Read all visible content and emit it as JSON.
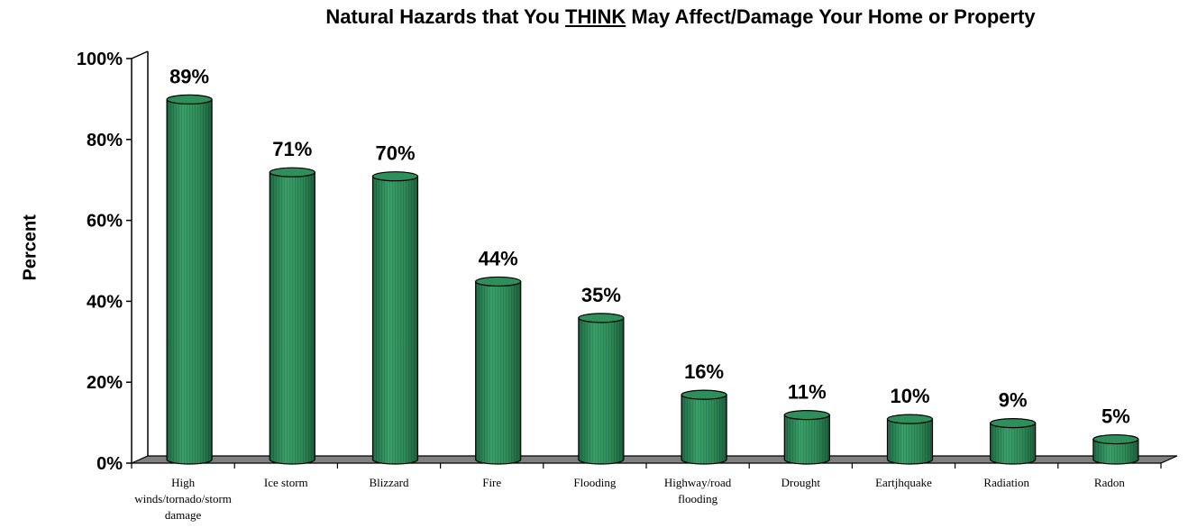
{
  "chart_data": {
    "type": "bar",
    "title_parts": [
      "Natural Hazards that You ",
      "THINK",
      " May Affect/Damage Your Home or Property"
    ],
    "ylabel": "Percent",
    "xlabel": "",
    "ylim": [
      0,
      100
    ],
    "y_ticks": [
      "0%",
      "20%",
      "40%",
      "60%",
      "80%",
      "100%"
    ],
    "categories": [
      [
        "High",
        "winds/tornado/storm",
        "damage"
      ],
      [
        "Ice storm"
      ],
      [
        "Blizzard"
      ],
      [
        "Fire"
      ],
      [
        "Flooding"
      ],
      [
        "Highway/road",
        "flooding"
      ],
      [
        "Drought"
      ],
      [
        "Eartjhquake"
      ],
      [
        "Radiation"
      ],
      [
        "Radon"
      ]
    ],
    "values": [
      89,
      71,
      70,
      44,
      35,
      16,
      11,
      10,
      9,
      5
    ],
    "data_labels": [
      "89%",
      "71%",
      "70%",
      "44%",
      "35%",
      "16%",
      "11%",
      "10%",
      "9%",
      "5%"
    ],
    "bar_color": "#2e8b57",
    "floor_color": "#808080",
    "grid": false,
    "legend": "none"
  }
}
